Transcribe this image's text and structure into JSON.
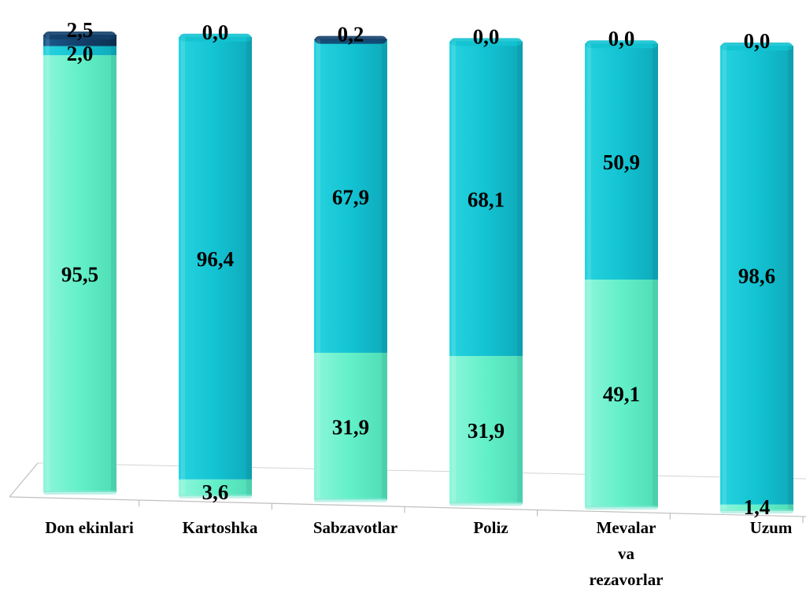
{
  "chart_data": {
    "type": "bar",
    "stacked": true,
    "stack_percent": true,
    "categories": [
      "Don ekinlari",
      "Kartoshka",
      "Sabzavotlar",
      "Poliz",
      "Mevalar va rezavorlar",
      "Uzum"
    ],
    "category_lines": [
      [
        "Don ekinlari"
      ],
      [
        "Kartoshka"
      ],
      [
        "Sabzavotlar"
      ],
      [
        "Poliz"
      ],
      [
        "Mevalar",
        "va",
        "rezavorlar"
      ],
      [
        "Uzum"
      ]
    ],
    "series": [
      {
        "values": [
          95.5,
          3.6,
          31.9,
          31.9,
          49.1,
          1.4
        ],
        "labels": [
          "95,5",
          "3,6",
          "31,9",
          "31,9",
          "49,1",
          "1,4"
        ],
        "color": "#62f0c8"
      },
      {
        "values": [
          2.0,
          96.4,
          67.9,
          68.1,
          50.9,
          98.6
        ],
        "labels": [
          "2,0",
          "96,4",
          "67,9",
          "68,1",
          "50,9",
          "98,6"
        ],
        "color": "#13c3d2"
      },
      {
        "values": [
          2.5,
          0.0,
          0.2,
          0.0,
          0.0,
          0.0
        ],
        "labels": [
          "2,5",
          "0,0",
          "0,2",
          "0,0",
          "0,0",
          "0,0"
        ],
        "color": "#12406a"
      }
    ],
    "ylim": [
      0,
      100
    ],
    "grid": false,
    "legend": "none"
  }
}
